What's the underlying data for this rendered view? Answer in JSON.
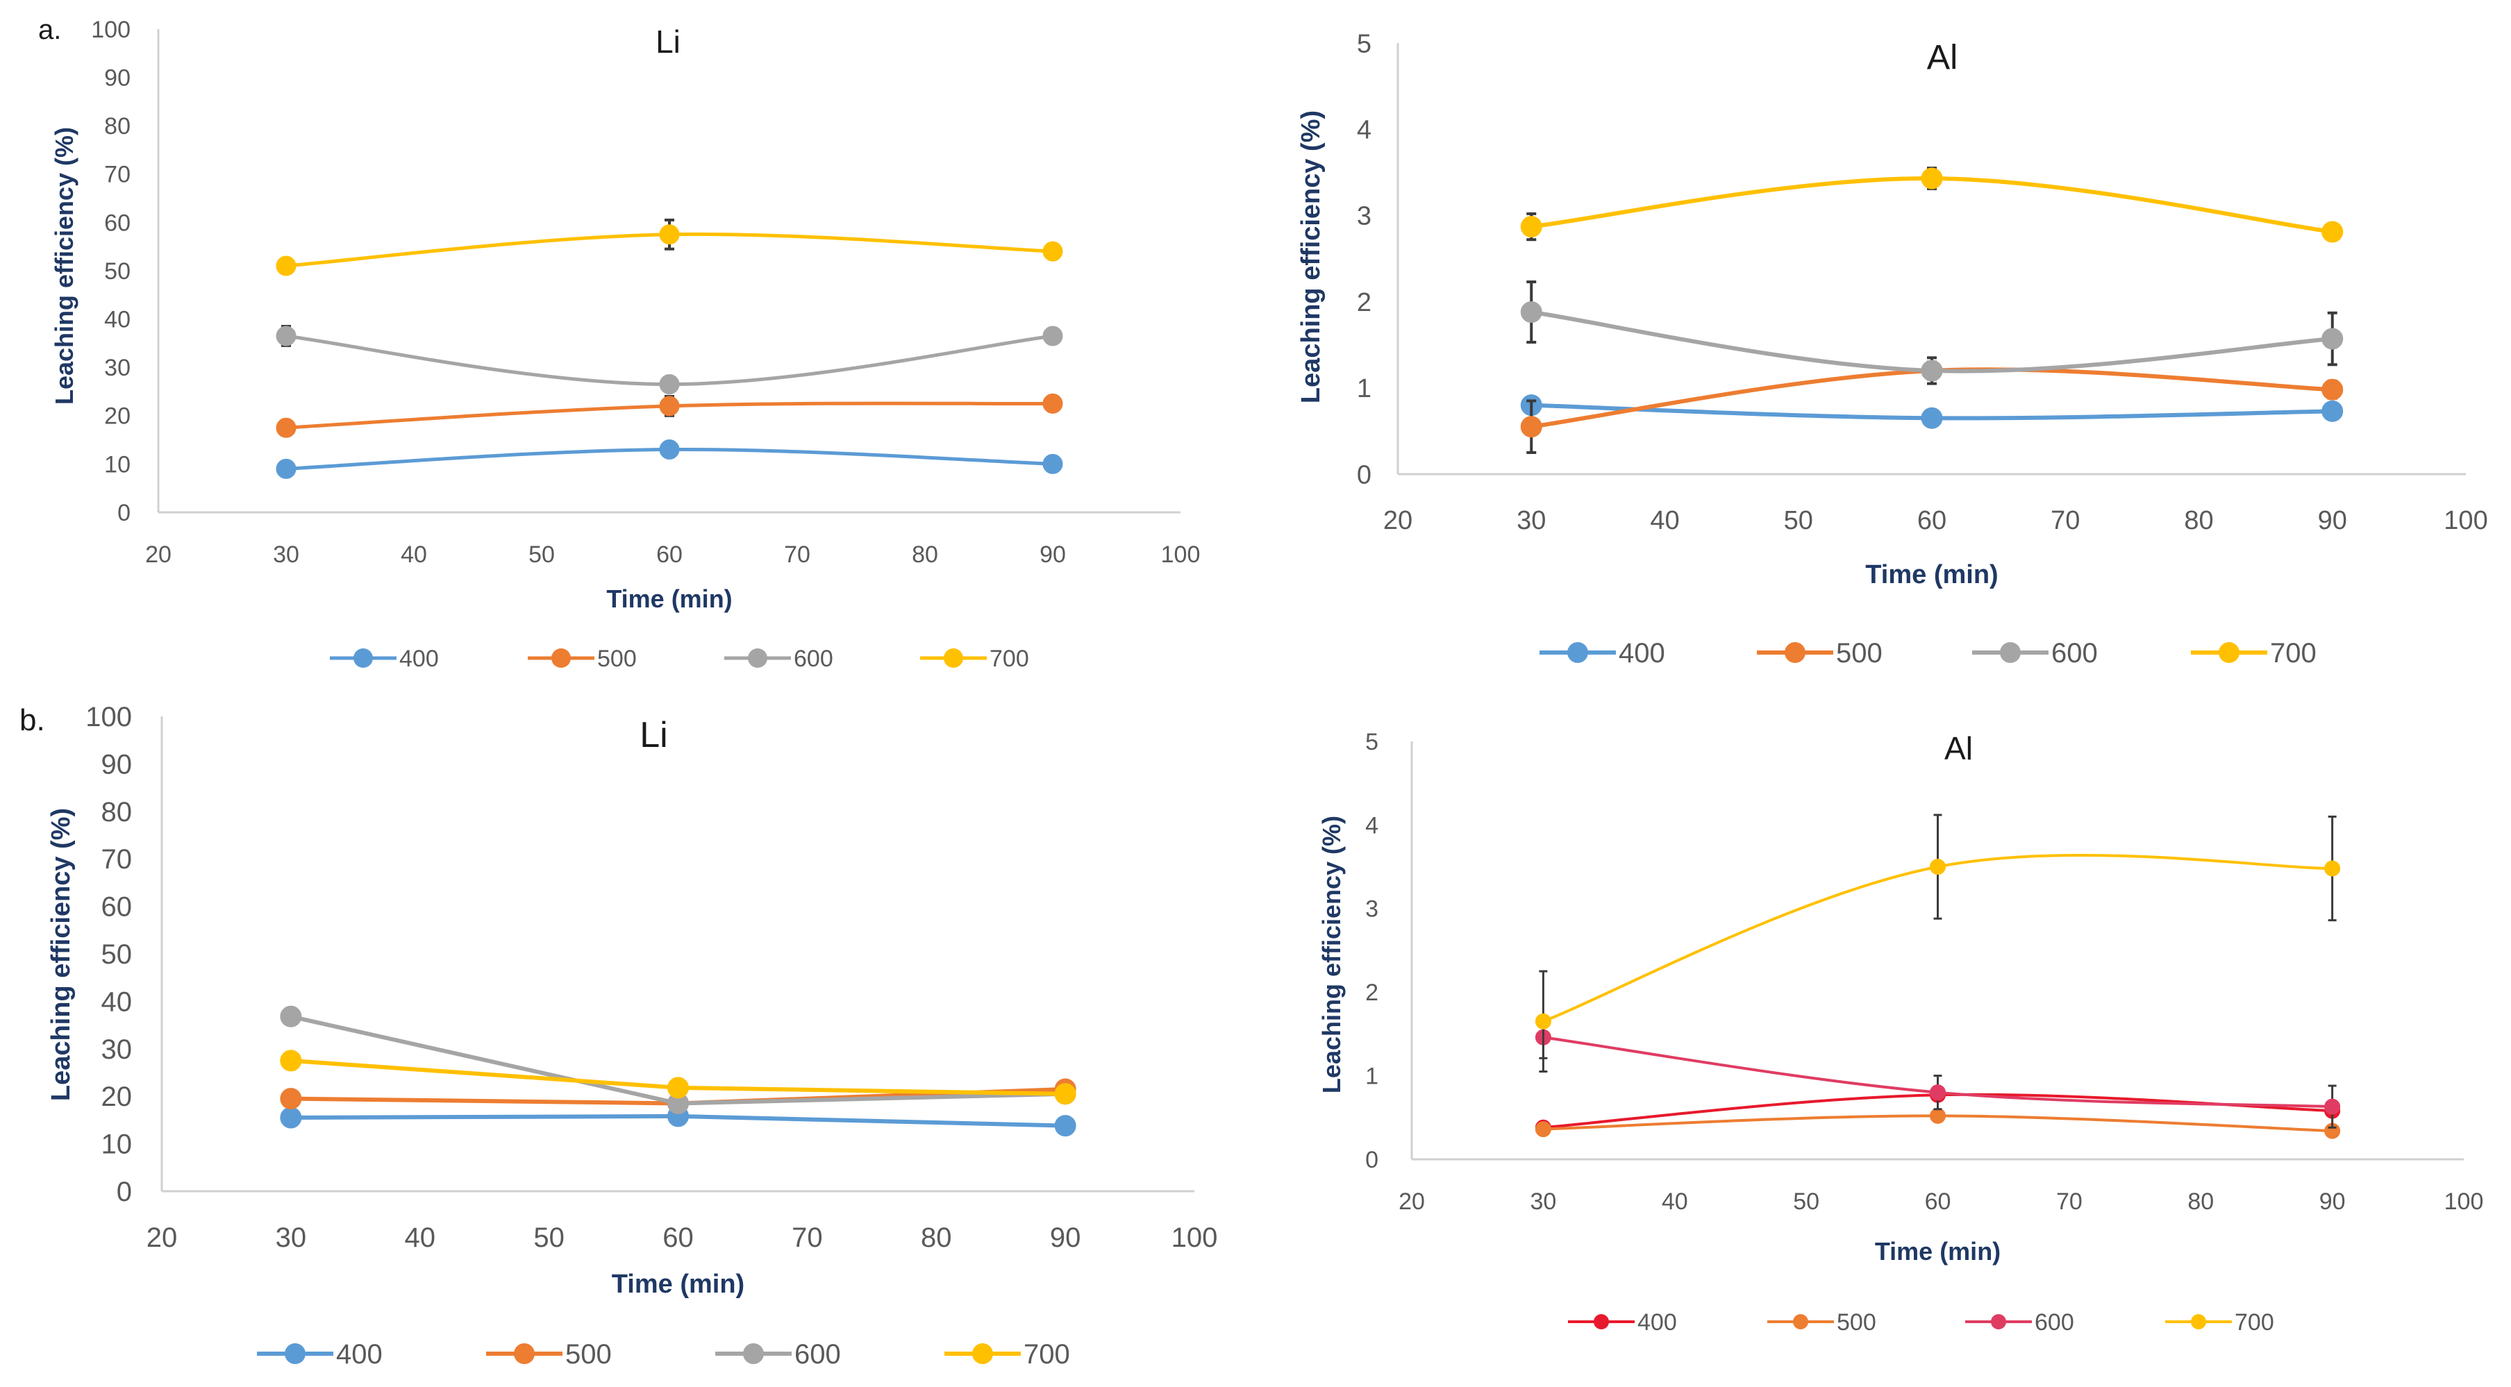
{
  "panel_labels": {
    "a": "a.",
    "b": "b."
  },
  "colors": {
    "c400": "#5b9bd5",
    "c500": "#ed7d31",
    "c600": "#a5a5a5",
    "c700": "#ffc000",
    "c400b": "#e8192c",
    "c600b": "#e03c63",
    "axis_title": "#1f3864",
    "tick": "#595959"
  },
  "chart_data": [
    {
      "type": "line",
      "title": "Li",
      "xlabel": "Time (min)",
      "ylabel": "Leaching efficiency (%)",
      "xlim": [
        20,
        100
      ],
      "ylim": [
        0,
        100
      ],
      "xticks": [
        "20",
        "30",
        "40",
        "50",
        "60",
        "70",
        "80",
        "90",
        "100"
      ],
      "yticks": [
        "0",
        "10",
        "20",
        "30",
        "40",
        "50",
        "60",
        "70",
        "80",
        "90",
        "100"
      ],
      "x": [
        30,
        60,
        90
      ],
      "series": [
        {
          "name": "400",
          "values": [
            9,
            13,
            10
          ],
          "errors": [
            0.5,
            1,
            0.5
          ],
          "color": "#5b9bd5"
        },
        {
          "name": "500",
          "values": [
            17.5,
            22,
            22.5
          ],
          "errors": [
            0.5,
            2,
            1.5
          ],
          "color": "#ed7d31"
        },
        {
          "name": "600",
          "values": [
            36.5,
            26.5,
            36.5
          ],
          "errors": [
            2,
            0.5,
            1
          ],
          "color": "#a5a5a5"
        },
        {
          "name": "700",
          "values": [
            51,
            57.5,
            54
          ],
          "errors": [
            0.5,
            3,
            1.5
          ],
          "color": "#ffc000"
        }
      ]
    },
    {
      "type": "line",
      "title": "Al",
      "xlabel": "Time (min)",
      "ylabel": "Leaching efficiency (%)",
      "xlim": [
        20,
        100
      ],
      "ylim": [
        0,
        5
      ],
      "xticks": [
        "20",
        "30",
        "40",
        "50",
        "60",
        "70",
        "80",
        "90",
        "100"
      ],
      "yticks": [
        "0",
        "1",
        "2",
        "3",
        "4",
        "5"
      ],
      "x": [
        30,
        60,
        90
      ],
      "series": [
        {
          "name": "400",
          "values": [
            0.8,
            0.65,
            0.73
          ],
          "errors": [
            0.05,
            0.03,
            0.05
          ],
          "color": "#5b9bd5"
        },
        {
          "name": "500",
          "values": [
            0.55,
            1.2,
            0.98
          ],
          "errors": [
            0.3,
            0.1,
            0.1
          ],
          "color": "#ed7d31"
        },
        {
          "name": "600",
          "values": [
            1.88,
            1.2,
            1.57
          ],
          "errors": [
            0.35,
            0.15,
            0.3
          ],
          "color": "#a5a5a5"
        },
        {
          "name": "700",
          "values": [
            2.87,
            3.43,
            2.81
          ],
          "errors": [
            0.15,
            0.12,
            0.05
          ],
          "color": "#ffc000"
        }
      ]
    },
    {
      "type": "line",
      "title": "Li",
      "xlabel": "Time (min)",
      "ylabel": "Leaching efficiency (%)",
      "xlim": [
        20,
        100
      ],
      "ylim": [
        0,
        100
      ],
      "xticks": [
        "20",
        "30",
        "40",
        "50",
        "60",
        "70",
        "80",
        "90",
        "100"
      ],
      "yticks": [
        "0",
        "10",
        "20",
        "30",
        "40",
        "50",
        "60",
        "70",
        "80",
        "90",
        "100"
      ],
      "x": [
        30,
        60,
        90
      ],
      "series": [
        {
          "name": "400",
          "values": [
            15.5,
            15.8,
            13.8
          ],
          "color": "#5b9bd5"
        },
        {
          "name": "500",
          "values": [
            19.5,
            18.5,
            21.5
          ],
          "color": "#ed7d31"
        },
        {
          "name": "600",
          "values": [
            36.8,
            18.5,
            20.5
          ],
          "color": "#a5a5a5"
        },
        {
          "name": "700",
          "values": [
            27.5,
            21.8,
            20.5
          ],
          "color": "#ffc000"
        }
      ]
    },
    {
      "type": "line",
      "title": "Al",
      "xlabel": "Time (min)",
      "ylabel": "Leaching efficiency (%)",
      "xlim": [
        20,
        100
      ],
      "ylim": [
        0,
        5
      ],
      "xticks": [
        "20",
        "30",
        "40",
        "50",
        "60",
        "70",
        "80",
        "90",
        "100"
      ],
      "yticks": [
        "0",
        "1",
        "2",
        "3",
        "4",
        "5"
      ],
      "x": [
        30,
        60,
        90
      ],
      "series": [
        {
          "name": "400",
          "values": [
            0.38,
            0.77,
            0.58
          ],
          "errors": [
            0.05,
            0.05,
            0.05
          ],
          "color": "#e8192c"
        },
        {
          "name": "500",
          "values": [
            0.36,
            0.52,
            0.34
          ],
          "errors": [
            0.05,
            0.05,
            0.05
          ],
          "color": "#ed7d31"
        },
        {
          "name": "600",
          "values": [
            1.46,
            0.8,
            0.63
          ],
          "errors": [
            0.25,
            0.2,
            0.25
          ],
          "color": "#e03c63"
        },
        {
          "name": "700",
          "values": [
            1.65,
            3.5,
            3.48
          ],
          "errors": [
            0.6,
            0.62,
            0.62
          ],
          "color": "#ffc000"
        }
      ]
    }
  ]
}
